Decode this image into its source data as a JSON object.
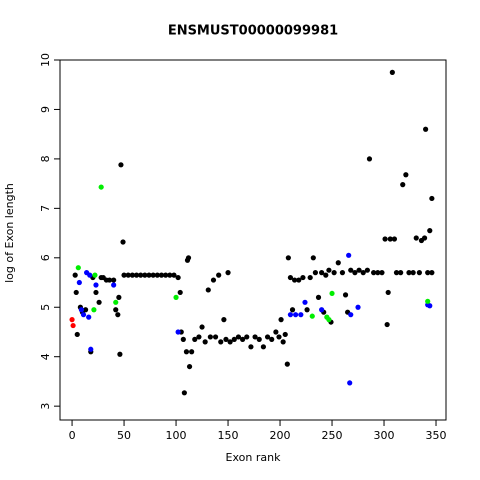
{
  "chart_data": {
    "type": "scatter",
    "title": "ENSMUST00000099981",
    "x_label": "Exon rank",
    "y_label": "log of Exon length",
    "xlim": [
      -11.6,
      359.6
    ],
    "ylim": [
      2.72,
      10.0
    ],
    "xticks": [
      0,
      50,
      100,
      150,
      200,
      250,
      300,
      350
    ],
    "yticks": [
      3,
      4,
      5,
      6,
      7,
      8,
      9,
      10
    ],
    "series": [
      {
        "color": "#000000",
        "x": [
          3,
          4,
          5,
          8,
          10,
          13,
          18,
          20,
          23,
          26,
          28,
          30,
          33,
          36,
          40,
          42,
          44,
          45,
          46,
          47,
          49,
          50,
          54,
          58,
          62,
          66,
          70,
          74,
          78,
          82,
          86,
          90,
          94,
          98,
          102,
          104,
          105,
          107,
          108,
          110,
          111,
          112,
          113,
          115,
          118,
          122,
          125,
          128,
          131,
          133,
          136,
          138,
          141,
          143,
          146,
          148,
          150,
          152,
          156,
          160,
          164,
          168,
          172,
          176,
          180,
          184,
          188,
          192,
          196,
          199,
          201,
          203,
          205,
          207,
          208,
          210,
          212,
          214,
          218,
          222,
          226,
          229,
          232,
          234,
          237,
          240,
          242,
          244,
          247,
          249,
          252,
          256,
          260,
          263,
          265,
          268,
          272,
          276,
          280,
          284,
          286,
          290,
          294,
          298,
          301,
          303,
          304,
          306,
          308,
          310,
          312,
          316,
          318,
          321,
          324,
          328,
          331,
          334,
          336,
          339,
          340,
          342,
          344,
          346,
          346
        ],
        "values": [
          5.65,
          5.3,
          4.45,
          5.0,
          4.9,
          4.95,
          4.1,
          5.6,
          5.3,
          5.1,
          5.6,
          5.6,
          5.55,
          5.55,
          5.55,
          4.95,
          4.85,
          5.2,
          4.05,
          7.88,
          6.32,
          5.65,
          5.65,
          5.65,
          5.65,
          5.65,
          5.65,
          5.65,
          5.65,
          5.65,
          5.65,
          5.65,
          5.65,
          5.65,
          5.6,
          5.3,
          4.5,
          4.35,
          3.27,
          4.1,
          5.95,
          6.0,
          3.8,
          4.1,
          4.35,
          4.4,
          4.6,
          4.3,
          5.35,
          4.4,
          5.55,
          4.4,
          5.65,
          4.3,
          4.75,
          4.35,
          5.7,
          4.3,
          4.35,
          4.4,
          4.35,
          4.4,
          4.2,
          4.4,
          4.35,
          4.2,
          4.4,
          4.35,
          4.5,
          4.4,
          4.75,
          4.3,
          4.45,
          3.85,
          6.0,
          5.6,
          4.95,
          5.55,
          5.55,
          5.6,
          4.95,
          5.6,
          6.0,
          5.7,
          5.2,
          5.7,
          4.9,
          5.65,
          5.75,
          4.7,
          5.7,
          5.9,
          5.7,
          5.25,
          4.9,
          5.75,
          5.7,
          5.75,
          5.7,
          5.75,
          8.0,
          5.7,
          5.7,
          5.7,
          6.38,
          4.65,
          5.3,
          6.38,
          9.75,
          6.38,
          5.7,
          5.7,
          7.48,
          7.68,
          5.7,
          5.7,
          6.4,
          5.7,
          6.35,
          6.4,
          8.6,
          5.7,
          6.55,
          7.2,
          5.7
        ]
      },
      {
        "color": "#0000ff",
        "x": [
          7,
          9,
          11,
          14,
          16,
          17,
          18,
          23,
          40,
          102,
          210,
          215,
          220,
          224,
          240,
          266,
          267,
          268,
          275,
          342,
          344
        ],
        "values": [
          5.5,
          4.95,
          4.85,
          5.7,
          4.8,
          5.65,
          4.15,
          5.45,
          5.45,
          4.5,
          4.85,
          4.85,
          4.85,
          5.1,
          4.95,
          6.05,
          3.47,
          4.85,
          5.0,
          5.05,
          5.03
        ]
      },
      {
        "color": "#00ee00",
        "x": [
          6,
          21,
          22,
          28,
          42,
          100,
          231,
          245,
          247,
          250,
          342
        ],
        "values": [
          5.8,
          4.95,
          5.65,
          7.43,
          5.1,
          5.2,
          4.82,
          4.8,
          4.75,
          5.28,
          5.12
        ]
      },
      {
        "color": "#ff0000",
        "x": [
          0,
          1
        ],
        "values": [
          4.75,
          4.63
        ]
      }
    ]
  }
}
